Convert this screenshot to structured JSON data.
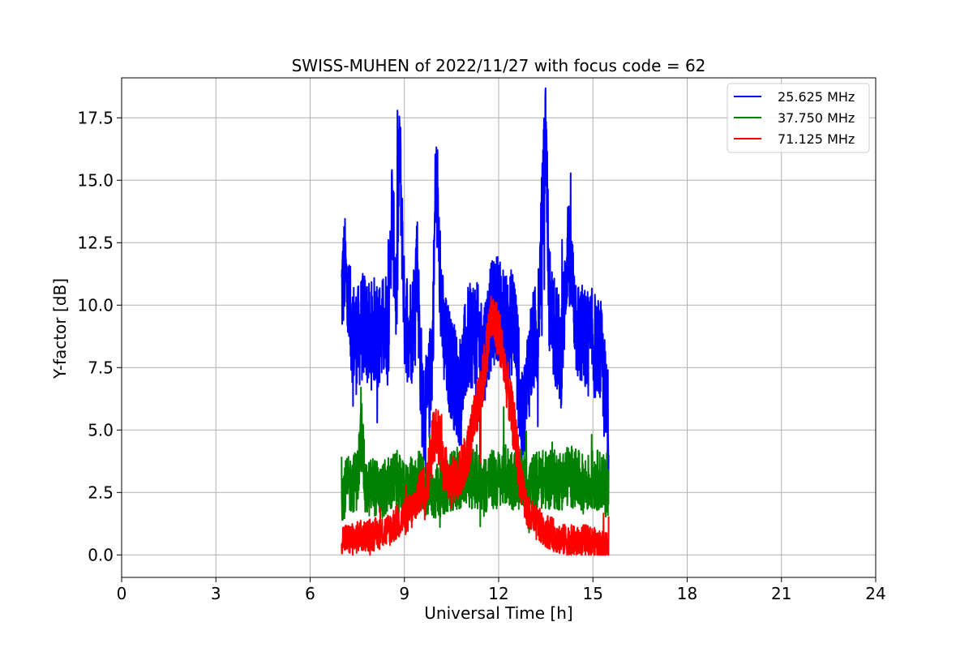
{
  "chart_data": {
    "type": "line",
    "title": "SWISS-MUHEN of 2022/11/27 with focus code = 62",
    "xlabel": "Universal Time [h]",
    "ylabel": "Y-factor [dB]",
    "xlim": [
      0,
      24
    ],
    "ylim": [
      -0.9,
      19.1
    ],
    "xticks": [
      0,
      3,
      6,
      9,
      12,
      15,
      18,
      21,
      24
    ],
    "yticks": [
      0.0,
      2.5,
      5.0,
      7.5,
      10.0,
      12.5,
      15.0,
      17.5
    ],
    "xtick_labels": [
      "0",
      "3",
      "6",
      "9",
      "12",
      "15",
      "18",
      "21",
      "24"
    ],
    "ytick_labels": [
      "0.0",
      "2.5",
      "5.0",
      "7.5",
      "10.0",
      "12.5",
      "15.0",
      "17.5"
    ],
    "grid": true,
    "legend_position": "top-right",
    "series": [
      {
        "name": "25.625 MHz",
        "color": "#0000ff",
        "x": [
          7.0,
          7.1,
          7.25,
          7.4,
          7.5,
          7.6,
          7.75,
          7.9,
          8.0,
          8.25,
          8.5,
          8.6,
          8.75,
          8.85,
          9.0,
          9.25,
          9.4,
          9.5,
          9.6,
          9.75,
          9.9,
          10.0,
          10.1,
          10.25,
          10.5,
          10.75,
          11.0,
          11.25,
          11.5,
          11.75,
          12.0,
          12.25,
          12.5,
          12.75,
          13.0,
          13.25,
          13.4,
          13.5,
          13.6,
          13.75,
          14.0,
          14.2,
          14.5,
          14.75,
          15.0,
          15.25,
          15.5
        ],
        "y": [
          10.5,
          11.5,
          9.5,
          8.8,
          8.5,
          9.0,
          9.2,
          8.6,
          9.0,
          8.8,
          9.5,
          14.0,
          10.0,
          16.5,
          9.5,
          9.0,
          12.0,
          8.0,
          5.5,
          6.0,
          8.5,
          15.5,
          12.0,
          8.5,
          7.5,
          6.5,
          8.5,
          9.0,
          8.0,
          9.5,
          10.0,
          9.0,
          9.5,
          5.0,
          8.0,
          9.0,
          14.0,
          17.5,
          10.5,
          9.0,
          8.0,
          12.5,
          9.0,
          8.5,
          8.5,
          8.0,
          5.0
        ]
      },
      {
        "name": "37.750 MHz",
        "color": "#008000",
        "x": [
          7.0,
          7.25,
          7.5,
          7.65,
          7.75,
          8.0,
          8.25,
          8.5,
          8.75,
          9.0,
          9.25,
          9.5,
          9.75,
          10.0,
          10.25,
          10.5,
          10.75,
          11.0,
          11.25,
          11.5,
          11.75,
          12.0,
          12.25,
          12.5,
          12.75,
          13.0,
          13.25,
          13.5,
          13.75,
          14.0,
          14.25,
          14.5,
          14.75,
          15.0,
          15.25,
          15.5
        ],
        "y": [
          2.5,
          2.8,
          3.0,
          5.0,
          2.5,
          2.8,
          2.5,
          2.8,
          3.0,
          2.5,
          2.8,
          3.0,
          2.5,
          2.5,
          2.8,
          3.0,
          3.0,
          3.2,
          3.0,
          2.8,
          3.0,
          3.0,
          3.2,
          3.0,
          3.0,
          2.8,
          3.0,
          3.0,
          3.0,
          3.0,
          3.2,
          3.0,
          2.8,
          3.0,
          3.0,
          2.5
        ]
      },
      {
        "name": "71.125 MHz",
        "color": "#ff0000",
        "x": [
          7.0,
          7.25,
          7.5,
          7.75,
          8.0,
          8.25,
          8.5,
          8.75,
          9.0,
          9.25,
          9.5,
          9.75,
          9.85,
          10.0,
          10.15,
          10.25,
          10.5,
          10.75,
          11.0,
          11.25,
          11.5,
          11.75,
          12.0,
          12.25,
          12.5,
          12.75,
          13.0,
          13.25,
          13.5,
          13.75,
          14.0,
          14.25,
          14.5,
          14.75,
          15.0,
          15.25,
          15.5
        ],
        "y": [
          0.7,
          0.6,
          0.7,
          0.8,
          0.8,
          0.9,
          1.0,
          1.3,
          1.5,
          1.8,
          2.5,
          3.0,
          4.5,
          5.0,
          4.5,
          3.5,
          3.0,
          3.2,
          4.0,
          5.5,
          7.0,
          9.5,
          9.0,
          7.0,
          5.0,
          2.5,
          1.5,
          1.2,
          1.0,
          0.8,
          0.6,
          0.6,
          0.5,
          0.6,
          0.5,
          0.4,
          0.4
        ]
      }
    ]
  }
}
